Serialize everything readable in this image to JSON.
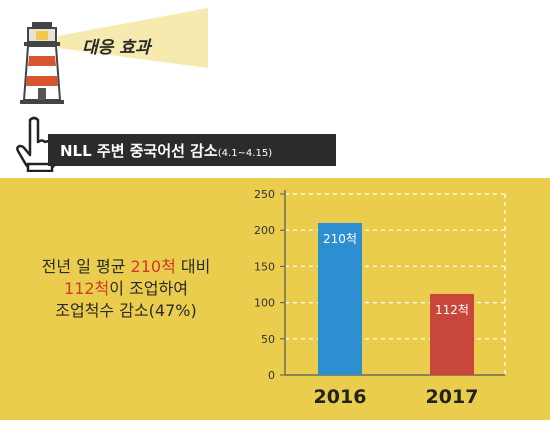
{
  "header": {
    "label": "대응 효과",
    "title_main": "NLL 주변 중국어선 감소",
    "title_period": "(4.1~4.15)"
  },
  "summary": {
    "line1_a": "전년 일 평균 ",
    "line1_b": "210척",
    "line1_c": " 대비",
    "line2_a": "112척",
    "line2_b": "이 조업하여",
    "line3": "조업척수 감소(47%)"
  },
  "colors": {
    "panel": "#ebcd4e",
    "bar_2016": "#2e8fd0",
    "bar_2017": "#c8463a",
    "highlight": "#d0392b"
  },
  "chart_data": {
    "type": "bar",
    "categories": [
      "2016",
      "2017"
    ],
    "values": [
      210,
      112
    ],
    "data_labels": [
      "210척",
      "112척"
    ],
    "ylim": [
      0,
      250
    ],
    "yticks": [
      0,
      50,
      100,
      150,
      200,
      250
    ],
    "grid": true,
    "title": "",
    "xlabel": "",
    "ylabel": ""
  }
}
